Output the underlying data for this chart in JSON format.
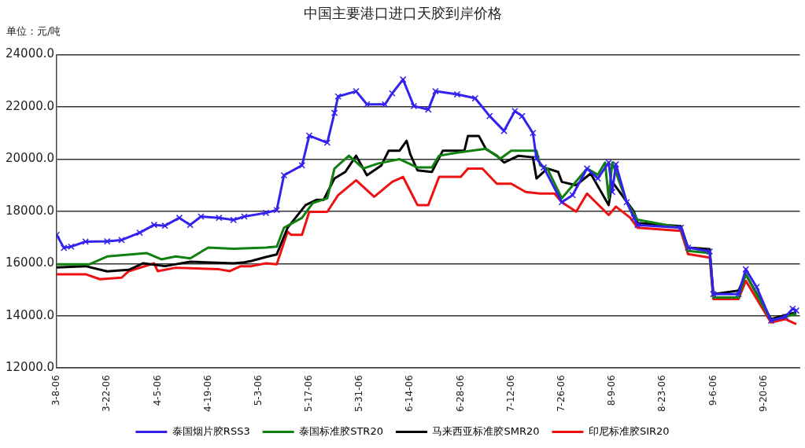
{
  "chart_data": {
    "type": "line",
    "title": "中国主要港口进口天胶到岸价格",
    "annotations": [
      "单位：元/吨"
    ],
    "xlim": [
      "--03-08",
      "--09-30"
    ],
    "xticks": [
      {
        "value": "--03-08",
        "label": "3-8-06"
      },
      {
        "value": "--03-22",
        "label": "3-22-06"
      },
      {
        "value": "--04-05",
        "label": "4-5-06"
      },
      {
        "value": "--04-19",
        "label": "4-19-06"
      },
      {
        "value": "--05-03",
        "label": "5-3-06"
      },
      {
        "value": "--05-17",
        "label": "5-17-06"
      },
      {
        "value": "--05-31",
        "label": "5-31-06"
      },
      {
        "value": "--06-14",
        "label": "6-14-06"
      },
      {
        "value": "--06-28",
        "label": "6-28-06"
      },
      {
        "value": "--07-12",
        "label": "7-12-06"
      },
      {
        "value": "--07-26",
        "label": "7-26-06"
      },
      {
        "value": "--08-09",
        "label": "8-9-06"
      },
      {
        "value": "--08-23",
        "label": "8-23-06"
      },
      {
        "value": "--09-06",
        "label": "9-6-06"
      },
      {
        "value": "--09-20",
        "label": "9-20-06"
      }
    ],
    "ylim": [
      12000,
      24000
    ],
    "yticks": [
      {
        "value": 12000,
        "label": "12000.0"
      },
      {
        "value": 14000,
        "label": "14000.0"
      },
      {
        "value": 16000,
        "label": "16000.0"
      },
      {
        "value": 18000,
        "label": "18000.0"
      },
      {
        "value": 20000,
        "label": "20000.0"
      },
      {
        "value": 22000,
        "label": "22000.0"
      },
      {
        "value": 24000,
        "label": "24000.0"
      }
    ],
    "grid": "y",
    "legend": "bottom",
    "line_style": "solid",
    "series": [
      {
        "name": "泰国烟片胶RSS3",
        "color": "#3322ee",
        "marker": "cross",
        "x": [
          "--03-08",
          "--03-10",
          "--03-12",
          "--03-16",
          "--03-22",
          "--03-26",
          "--03-31",
          "--04-04",
          "--04-07",
          "--04-11",
          "--04-14",
          "--04-17",
          "--04-22",
          "--04-26",
          "--04-29",
          "--05-05",
          "--05-08",
          "--05-10",
          "--05-15",
          "--05-17",
          "--05-22",
          "--05-24",
          "--05-25",
          "--05-30",
          "--06-02",
          "--06-07",
          "--06-09",
          "--06-12",
          "--06-15",
          "--06-19",
          "--06-21",
          "--06-27",
          "--07-02",
          "--07-06",
          "--07-10",
          "--07-13",
          "--07-15",
          "--07-18",
          "--07-19",
          "--07-21",
          "--07-26",
          "--07-29",
          "--08-02",
          "--08-05",
          "--08-08",
          "--08-09",
          "--08-10",
          "--08-13",
          "--08-15",
          "--08-16",
          "--08-28",
          "--08-30",
          "--09-05",
          "--09-06",
          "--09-13",
          "--09-15",
          "--09-18",
          "--09-22",
          "--09-26",
          "--09-28",
          "--09-29"
        ],
        "values": [
          17100,
          16600,
          16650,
          16840,
          16850,
          16900,
          17180,
          17480,
          17450,
          17750,
          17480,
          17800,
          17750,
          17670,
          17800,
          17940,
          18050,
          19380,
          19760,
          20900,
          20630,
          21770,
          22400,
          22600,
          22100,
          22100,
          22520,
          23050,
          22030,
          21900,
          22600,
          22480,
          22330,
          21650,
          21080,
          21840,
          21650,
          21000,
          20020,
          19680,
          18350,
          18620,
          19640,
          19260,
          19870,
          18740,
          19800,
          18350,
          17750,
          17480,
          17370,
          16610,
          16460,
          14830,
          14830,
          15780,
          15100,
          13810,
          13960,
          14270,
          14200
        ]
      },
      {
        "name": "泰国标准胶STR20",
        "color": "#108010",
        "x": [
          "--03-08",
          "--03-17",
          "--03-22",
          "--04-02",
          "--04-06",
          "--04-10",
          "--04-14",
          "--04-19",
          "--04-26",
          "--05-05",
          "--05-08",
          "--05-10",
          "--05-15",
          "--05-18",
          "--05-22",
          "--05-24",
          "--05-28",
          "--06-01",
          "--06-05",
          "--06-11",
          "--06-16",
          "--06-20",
          "--06-22",
          "--06-27",
          "--07-05",
          "--07-09",
          "--07-12",
          "--07-19",
          "--07-20",
          "--07-22",
          "--07-26",
          "--08-02",
          "--08-05",
          "--08-07",
          "--08-08",
          "--08-09",
          "--08-13",
          "--08-16",
          "--08-28",
          "--08-30",
          "--09-05",
          "--09-06",
          "--09-13",
          "--09-15",
          "--09-22",
          "--09-26",
          "--09-29"
        ],
        "values": [
          15970,
          15970,
          16270,
          16400,
          16160,
          16270,
          16200,
          16610,
          16570,
          16610,
          16650,
          17370,
          17750,
          18320,
          18500,
          19640,
          20130,
          19640,
          19830,
          20000,
          19680,
          19680,
          20130,
          20250,
          20400,
          20020,
          20320,
          20320,
          19760,
          19640,
          18500,
          19640,
          19400,
          19870,
          18500,
          19870,
          18350,
          17680,
          17370,
          16480,
          16400,
          14700,
          14700,
          15590,
          13810,
          13960,
          14080
        ]
      },
      {
        "name": "马来西亚标准胶SMR20",
        "color": "#000000",
        "x": [
          "--03-08",
          "--03-16",
          "--03-22",
          "--03-28",
          "--04-01",
          "--04-07",
          "--04-14",
          "--04-26",
          "--04-29",
          "--05-01",
          "--05-05",
          "--05-08",
          "--05-11",
          "--05-16",
          "--05-19",
          "--05-21",
          "--05-24",
          "--05-27",
          "--05-30",
          "--06-02",
          "--06-06",
          "--06-08",
          "--06-11",
          "--06-13",
          "--06-14",
          "--06-16",
          "--06-20",
          "--06-23",
          "--06-29",
          "--06-30",
          "--07-03",
          "--07-05",
          "--07-08",
          "--07-10",
          "--07-14",
          "--07-18",
          "--07-19",
          "--07-22",
          "--07-25",
          "--07-26",
          "--07-30",
          "--08-03",
          "--08-08",
          "--08-09",
          "--08-15",
          "--08-16",
          "--08-28",
          "--08-30",
          "--09-05",
          "--09-06",
          "--09-13",
          "--09-15",
          "--09-22",
          "--09-29"
        ],
        "values": [
          15850,
          15900,
          15700,
          15760,
          16010,
          15900,
          16070,
          16010,
          16050,
          16100,
          16250,
          16350,
          17370,
          18240,
          18440,
          18440,
          19260,
          19510,
          20130,
          19380,
          19760,
          20320,
          20320,
          20700,
          20190,
          19570,
          19510,
          20320,
          20320,
          20890,
          20890,
          20380,
          20130,
          19870,
          20130,
          20070,
          19260,
          19640,
          19510,
          19130,
          19000,
          19450,
          18240,
          19130,
          17990,
          17550,
          17430,
          16610,
          16550,
          14830,
          14960,
          15590,
          13870,
          14140
        ]
      },
      {
        "name": "印尼标准胶SIR20",
        "color": "#ee1111",
        "x": [
          "--03-08",
          "--03-16",
          "--03-20",
          "--03-26",
          "--03-28",
          "--04-04",
          "--04-05",
          "--04-10",
          "--04-22",
          "--04-25",
          "--04-28",
          "--05-01",
          "--05-05",
          "--05-08",
          "--05-11",
          "--05-12",
          "--05-15",
          "--05-17",
          "--05-22",
          "--05-25",
          "--05-30",
          "--06-04",
          "--06-09",
          "--06-12",
          "--06-16",
          "--06-19",
          "--06-22",
          "--06-28",
          "--06-30",
          "--07-04",
          "--07-08",
          "--07-12",
          "--07-16",
          "--07-20",
          "--07-24",
          "--07-26",
          "--07-30",
          "--08-02",
          "--08-08",
          "--08-10",
          "--08-14",
          "--08-16",
          "--08-28",
          "--08-30",
          "--09-05",
          "--09-06",
          "--09-13",
          "--09-15",
          "--09-22",
          "--09-26",
          "--09-29"
        ],
        "values": [
          15590,
          15590,
          15400,
          15460,
          15710,
          16010,
          15710,
          15840,
          15780,
          15710,
          15900,
          15900,
          16010,
          15970,
          17220,
          17100,
          17100,
          17980,
          17980,
          18620,
          19190,
          18560,
          19130,
          19320,
          18240,
          18240,
          19320,
          19320,
          19640,
          19640,
          19060,
          19060,
          18740,
          18680,
          18680,
          18350,
          17990,
          18680,
          17860,
          18180,
          17750,
          17370,
          17250,
          16360,
          16230,
          14640,
          14640,
          15340,
          13740,
          13870,
          13680
        ]
      }
    ]
  }
}
